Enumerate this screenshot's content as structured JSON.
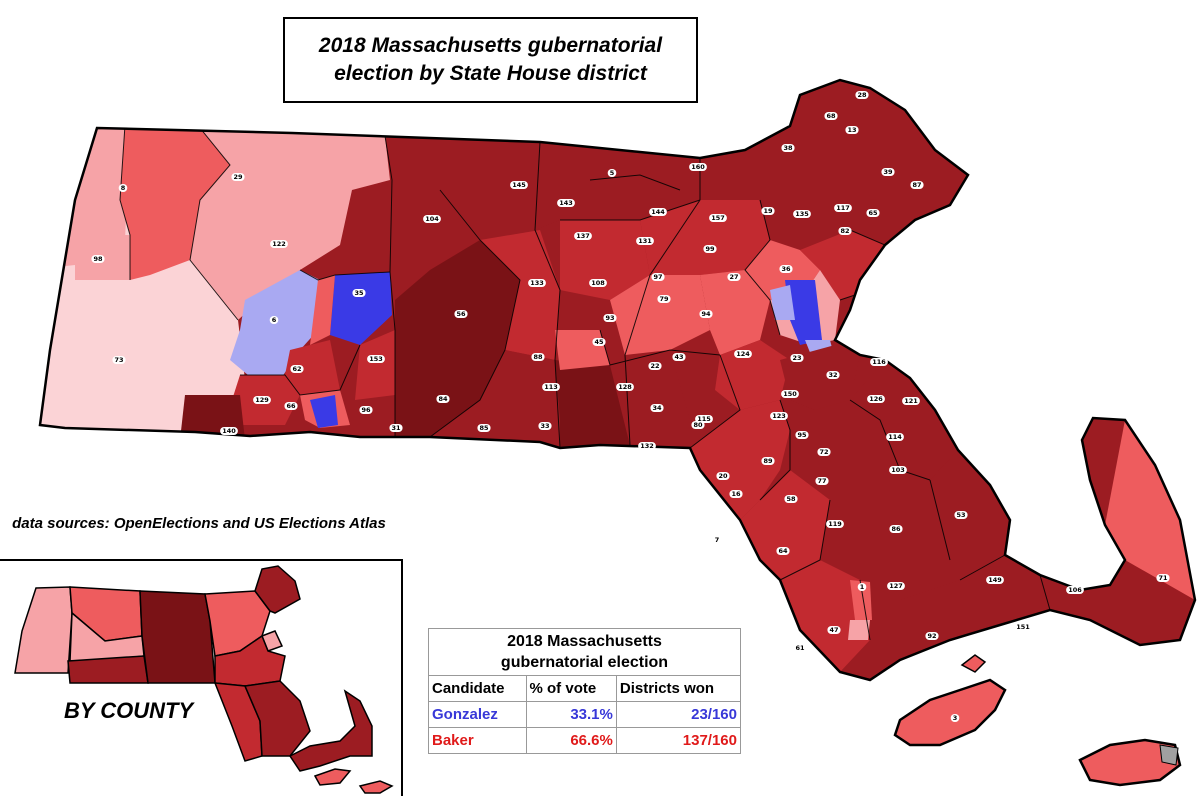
{
  "title": {
    "line1": "2018 Massachusetts gubernatorial",
    "line2": "election by State House district"
  },
  "sources": "data sources: OpenElections and US Elections Atlas",
  "inset": {
    "label": "BY COUNTY"
  },
  "results": {
    "caption_line1": "2018 Massachusetts",
    "caption_line2": "gubernatorial election",
    "headers": [
      "Candidate",
      "% of vote",
      "Districts won"
    ],
    "rows": [
      {
        "candidate": "Gonzalez",
        "pct": "33.1%",
        "won": "23/160",
        "color": "#3838d8"
      },
      {
        "candidate": "Baker",
        "pct": "66.6%",
        "won": "137/160",
        "color": "#e01a1a"
      }
    ]
  },
  "colors": {
    "baker_dark": "#7a1216",
    "baker_strong": "#9c1c22",
    "baker_mid": "#c22a30",
    "baker_light": "#ee5c5e",
    "baker_pale": "#f6a3a7",
    "baker_faint": "#fbd3d6",
    "gonzalez_strong": "#3a3ae6",
    "gonzalez_light": "#a9a9f2",
    "gonzalez_faint": "#d8d8f8"
  },
  "district_labels": [
    "28",
    "68",
    "13",
    "38",
    "39",
    "87",
    "160",
    "145",
    "5",
    "143",
    "144",
    "157",
    "19",
    "135",
    "117",
    "65",
    "137",
    "131",
    "99",
    "82",
    "104",
    "8",
    "29",
    "122",
    "98",
    "73",
    "6",
    "35",
    "133",
    "108",
    "97",
    "27",
    "36",
    "56",
    "79",
    "93",
    "94",
    "62",
    "153",
    "88",
    "45",
    "43",
    "124",
    "23",
    "32",
    "116",
    "129",
    "66",
    "96",
    "113",
    "128",
    "22",
    "150",
    "126",
    "121",
    "140",
    "84",
    "31",
    "85",
    "33",
    "34",
    "115",
    "80",
    "123",
    "95",
    "132",
    "72",
    "114",
    "20",
    "89",
    "77",
    "103",
    "16",
    "58",
    "119",
    "86",
    "53",
    "7",
    "64",
    "1",
    "127",
    "149",
    "106",
    "71",
    "61",
    "47",
    "92",
    "151",
    "3"
  ]
}
